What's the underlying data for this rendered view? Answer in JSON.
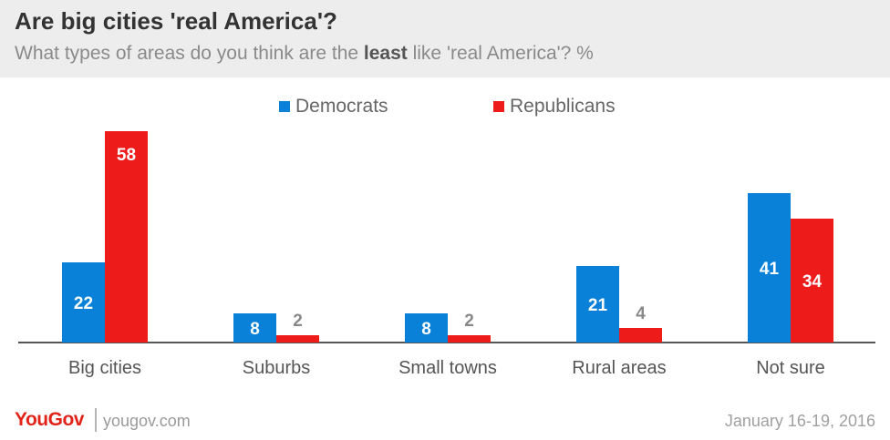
{
  "title": "Are big cities 'real America'?",
  "subtitle": {
    "pre": "What types of areas do you think are the ",
    "bold": "least",
    "post": " like 'real America'? %"
  },
  "colors": {
    "democrats": "#0a81d8",
    "republicans": "#ee1b1b",
    "label_inside": "#ffffff",
    "label_outside": "#888888",
    "axis_text": "#555555"
  },
  "chart_data": {
    "type": "bar",
    "categories": [
      "Big cities",
      "Suburbs",
      "Small towns",
      "Rural areas",
      "Not sure"
    ],
    "series": [
      {
        "name": "Democrats",
        "values": [
          22,
          8,
          8,
          21,
          41
        ]
      },
      {
        "name": "Republicans",
        "values": [
          58,
          2,
          2,
          4,
          34
        ]
      }
    ],
    "ylim": [
      0,
      58
    ],
    "grid": false,
    "legend": "top-center",
    "data_labels": true
  },
  "footer": {
    "brand": "YouGov",
    "site": "yougov.com",
    "date": "January 16-19, 2016"
  }
}
